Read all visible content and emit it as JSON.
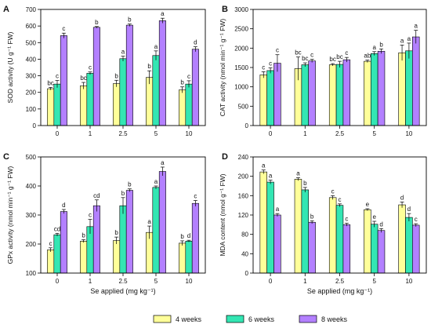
{
  "legend": {
    "placement": "bottom-center",
    "entries": [
      "4 weeks",
      "6 weeks",
      "8 weeks"
    ]
  },
  "colors": {
    "4 weeks": "#ffff99",
    "6 weeks": "#33e6b3",
    "8 weeks": "#b380ff"
  },
  "chart_data": [
    {
      "panel": "A",
      "type": "bar",
      "categories": [
        "0",
        "1",
        "2.5",
        "5",
        "10"
      ],
      "xlabel": "",
      "ylabel": "SOD activity (U g⁻¹ FW)",
      "ylim": [
        0,
        700
      ],
      "yticks": [
        0,
        100,
        200,
        300,
        400,
        500,
        600,
        700
      ],
      "series": [
        {
          "name": "4 weeks",
          "values": [
            222,
            240,
            253,
            290,
            215
          ],
          "errors": [
            8,
            20,
            20,
            40,
            18
          ],
          "letters": [
            "bc",
            "bc",
            "b",
            "b",
            "b"
          ]
        },
        {
          "name": "6 weeks",
          "values": [
            250,
            315,
            403,
            422,
            250
          ],
          "errors": [
            22,
            8,
            15,
            28,
            20
          ],
          "letters": [
            "c",
            "c",
            "a",
            "a",
            "c"
          ]
        },
        {
          "name": "8 weeks",
          "values": [
            542,
            592,
            605,
            632,
            460
          ],
          "errors": [
            15,
            5,
            7,
            15,
            15
          ],
          "letters": [
            "c",
            "b",
            "b",
            "a",
            "d"
          ]
        }
      ]
    },
    {
      "panel": "B",
      "type": "bar",
      "categories": [
        "0",
        "1",
        "2.5",
        "5",
        "10"
      ],
      "xlabel": "",
      "ylabel": "CAT activity (nmol min⁻¹ g⁻¹ FW)",
      "ylim": [
        0,
        3000
      ],
      "yticks": [
        0,
        500,
        1000,
        1500,
        2000,
        2500,
        3000
      ],
      "series": [
        {
          "name": "4 weeks",
          "values": [
            1310,
            1470,
            1570,
            1660,
            1880
          ],
          "errors": [
            80,
            300,
            30,
            30,
            200
          ],
          "letters": [
            "c",
            "bc",
            "bc",
            "ab",
            "a"
          ]
        },
        {
          "name": "6 weeks",
          "values": [
            1420,
            1570,
            1580,
            1860,
            1930
          ],
          "errors": [
            70,
            50,
            80,
            50,
            200
          ],
          "letters": [
            "c",
            "bc",
            "bc",
            "a",
            "a"
          ]
        },
        {
          "name": "8 weeks",
          "values": [
            1610,
            1670,
            1700,
            1920,
            2290
          ],
          "errors": [
            220,
            40,
            60,
            60,
            170
          ],
          "letters": [
            "c",
            "c",
            "c",
            "b",
            "a"
          ]
        }
      ]
    },
    {
      "panel": "C",
      "type": "bar",
      "categories": [
        "0",
        "1",
        "2.5",
        "5",
        "10"
      ],
      "xlabel": "Se applied (mg kg⁻¹)",
      "ylabel": "GPx activity (nmol min⁻¹ g⁻¹ FW)",
      "ylim": [
        100,
        500
      ],
      "yticks": [
        100,
        200,
        300,
        400,
        500
      ],
      "series": [
        {
          "name": "4 weeks",
          "values": [
            180,
            210,
            212,
            240,
            203
          ],
          "errors": [
            7,
            5,
            12,
            22,
            8
          ],
          "letters": [
            "c",
            "b",
            "b",
            "a",
            "b"
          ]
        },
        {
          "name": "6 weeks",
          "values": [
            232,
            260,
            332,
            395,
            210
          ],
          "errors": [
            5,
            25,
            28,
            5,
            3
          ],
          "letters": [
            "cd",
            "c",
            "b",
            "a",
            "d"
          ]
        },
        {
          "name": "8 weeks",
          "values": [
            312,
            332,
            385,
            450,
            340
          ],
          "errors": [
            7,
            20,
            5,
            15,
            10
          ],
          "letters": [
            "d",
            "cd",
            "b",
            "a",
            "c"
          ]
        }
      ]
    },
    {
      "panel": "D",
      "type": "bar",
      "categories": [
        "0",
        "1",
        "2.5",
        "5",
        "10"
      ],
      "xlabel": "Se applied (mg kg⁻¹)",
      "ylabel": "MDA content (nmol g⁻¹ FW)",
      "ylim": [
        0,
        240
      ],
      "yticks": [
        0,
        40,
        80,
        120,
        160,
        200,
        240
      ],
      "series": [
        {
          "name": "4 weeks",
          "values": [
            209,
            194,
            156,
            131,
            141
          ],
          "errors": [
            4,
            3,
            4,
            2,
            6
          ],
          "letters": [
            "a",
            "a",
            "c",
            "e",
            "d"
          ]
        },
        {
          "name": "6 weeks",
          "values": [
            188,
            172,
            140,
            101,
            115
          ],
          "errors": [
            4,
            5,
            3,
            6,
            8
          ],
          "letters": [
            "a",
            "b",
            "c",
            "e",
            "d"
          ]
        },
        {
          "name": "8 weeks",
          "values": [
            120,
            105,
            100,
            88,
            99
          ],
          "errors": [
            3,
            3,
            3,
            4,
            3
          ],
          "letters": [
            "a",
            "b",
            "c",
            "d",
            "c"
          ]
        }
      ]
    }
  ]
}
